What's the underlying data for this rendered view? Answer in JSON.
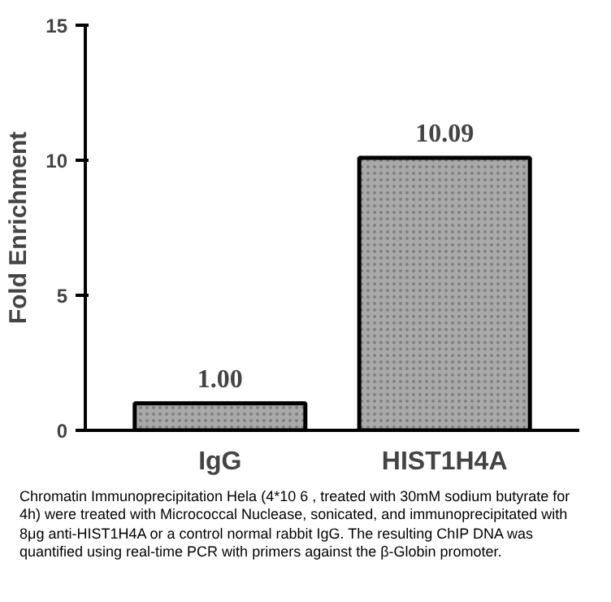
{
  "chart_data": {
    "type": "bar",
    "ylabel": "Fold Enrichment",
    "categories": [
      "IgG",
      "HIST1H4A"
    ],
    "values": [
      1.0,
      10.09
    ],
    "value_labels": [
      "1.00",
      "10.09"
    ],
    "color": "#a9a9a9",
    "ylim": [
      0,
      15
    ],
    "yticks": [
      0,
      5,
      10,
      15
    ],
    "grid": false,
    "annotations": [
      "Chromatin Immunoprecipitation Hela (4*10 6 , treated with 30mM sodium butyrate for 4h) were treated with Micrococcal Nuclease, sonicated, and immunoprecipitated with 8μg anti-HIST1H4A or a control normal rabbit IgG. The resulting ChIP DNA was quantified using real-time PCR with primers against the β-Globin promoter."
    ]
  }
}
